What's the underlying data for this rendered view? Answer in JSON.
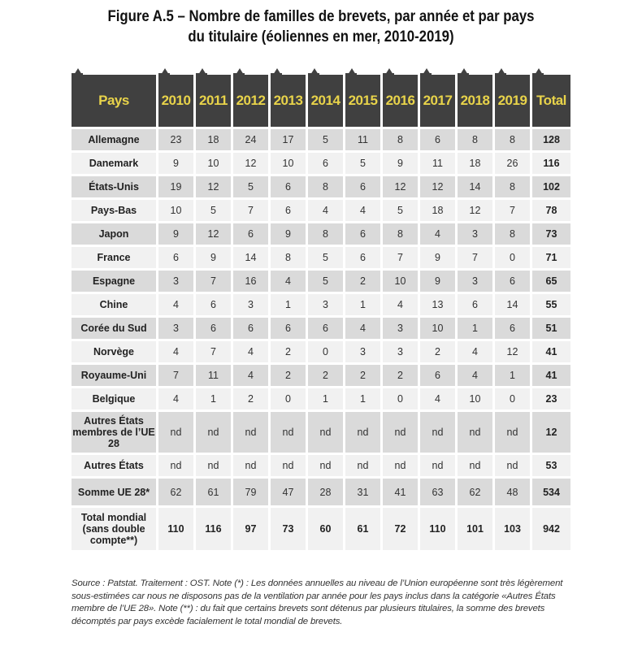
{
  "title_line1": "Figure A.5 – Nombre de familles de brevets, par année et par pays",
  "title_line2": "du titulaire (éoliennes en mer, 2010-2019)",
  "headers": [
    "Pays",
    "2010",
    "2011",
    "2012",
    "2013",
    "2014",
    "2015",
    "2016",
    "2017",
    "2018",
    "2019",
    "Total"
  ],
  "rows": [
    {
      "pays": "Allemagne",
      "values": [
        "23",
        "18",
        "24",
        "17",
        "5",
        "11",
        "8",
        "6",
        "8",
        "8"
      ],
      "total": "128"
    },
    {
      "pays": "Danemark",
      "values": [
        "9",
        "10",
        "12",
        "10",
        "6",
        "5",
        "9",
        "11",
        "18",
        "26"
      ],
      "total": "116"
    },
    {
      "pays": "États-Unis",
      "values": [
        "19",
        "12",
        "5",
        "6",
        "8",
        "6",
        "12",
        "12",
        "14",
        "8"
      ],
      "total": "102"
    },
    {
      "pays": "Pays-Bas",
      "values": [
        "10",
        "5",
        "7",
        "6",
        "4",
        "4",
        "5",
        "18",
        "12",
        "7"
      ],
      "total": "78"
    },
    {
      "pays": "Japon",
      "values": [
        "9",
        "12",
        "6",
        "9",
        "8",
        "6",
        "8",
        "4",
        "3",
        "8"
      ],
      "total": "73"
    },
    {
      "pays": "France",
      "values": [
        "6",
        "9",
        "14",
        "8",
        "5",
        "6",
        "7",
        "9",
        "7",
        "0"
      ],
      "total": "71"
    },
    {
      "pays": "Espagne",
      "values": [
        "3",
        "7",
        "16",
        "4",
        "5",
        "2",
        "10",
        "9",
        "3",
        "6"
      ],
      "total": "65"
    },
    {
      "pays": "Chine",
      "values": [
        "4",
        "6",
        "3",
        "1",
        "3",
        "1",
        "4",
        "13",
        "6",
        "14"
      ],
      "total": "55"
    },
    {
      "pays": "Corée du Sud",
      "values": [
        "3",
        "6",
        "6",
        "6",
        "6",
        "4",
        "3",
        "10",
        "1",
        "6"
      ],
      "total": "51"
    },
    {
      "pays": "Norvège",
      "values": [
        "4",
        "7",
        "4",
        "2",
        "0",
        "3",
        "3",
        "2",
        "4",
        "12"
      ],
      "total": "41"
    },
    {
      "pays": "Royaume-Uni",
      "values": [
        "7",
        "11",
        "4",
        "2",
        "2",
        "2",
        "2",
        "6",
        "4",
        "1"
      ],
      "total": "41"
    },
    {
      "pays": "Belgique",
      "values": [
        "4",
        "1",
        "2",
        "0",
        "1",
        "1",
        "0",
        "4",
        "10",
        "0"
      ],
      "total": "23"
    },
    {
      "pays": "Autres États membres de l’UE 28",
      "values": [
        "nd",
        "nd",
        "nd",
        "nd",
        "nd",
        "nd",
        "nd",
        "nd",
        "nd",
        "nd"
      ],
      "total": "12"
    },
    {
      "pays": "Autres États",
      "values": [
        "nd",
        "nd",
        "nd",
        "nd",
        "nd",
        "nd",
        "nd",
        "nd",
        "nd",
        "nd"
      ],
      "total": "53"
    },
    {
      "pays": "Somme UE 28*",
      "values": [
        "62",
        "61",
        "79",
        "47",
        "28",
        "31",
        "41",
        "63",
        "62",
        "48"
      ],
      "total": "534"
    },
    {
      "pays": "Total mondial (sans double compte**)",
      "values": [
        "110",
        "116",
        "97",
        "73",
        "60",
        "61",
        "72",
        "110",
        "101",
        "103"
      ],
      "total": "942"
    }
  ],
  "note": "Source : Patstat. Traitement : OST. Note (*) : Les données annuelles au niveau de l’Union européenne sont très légèrement sous-estimées car nous ne disposons pas de la ventilation par année pour les pays inclus dans la catégorie «Autres États membre de l’UE 28». Note (**) : du fait que certains brevets sont détenus par plusieurs titulaires, la somme des brevets décomptés par pays excède facialement le total mondial de brevets.",
  "colors": {
    "header_bg": "#404040",
    "header_text": "#e8d34a",
    "row_dark": "#dadada",
    "row_light": "#f1f1f1"
  }
}
